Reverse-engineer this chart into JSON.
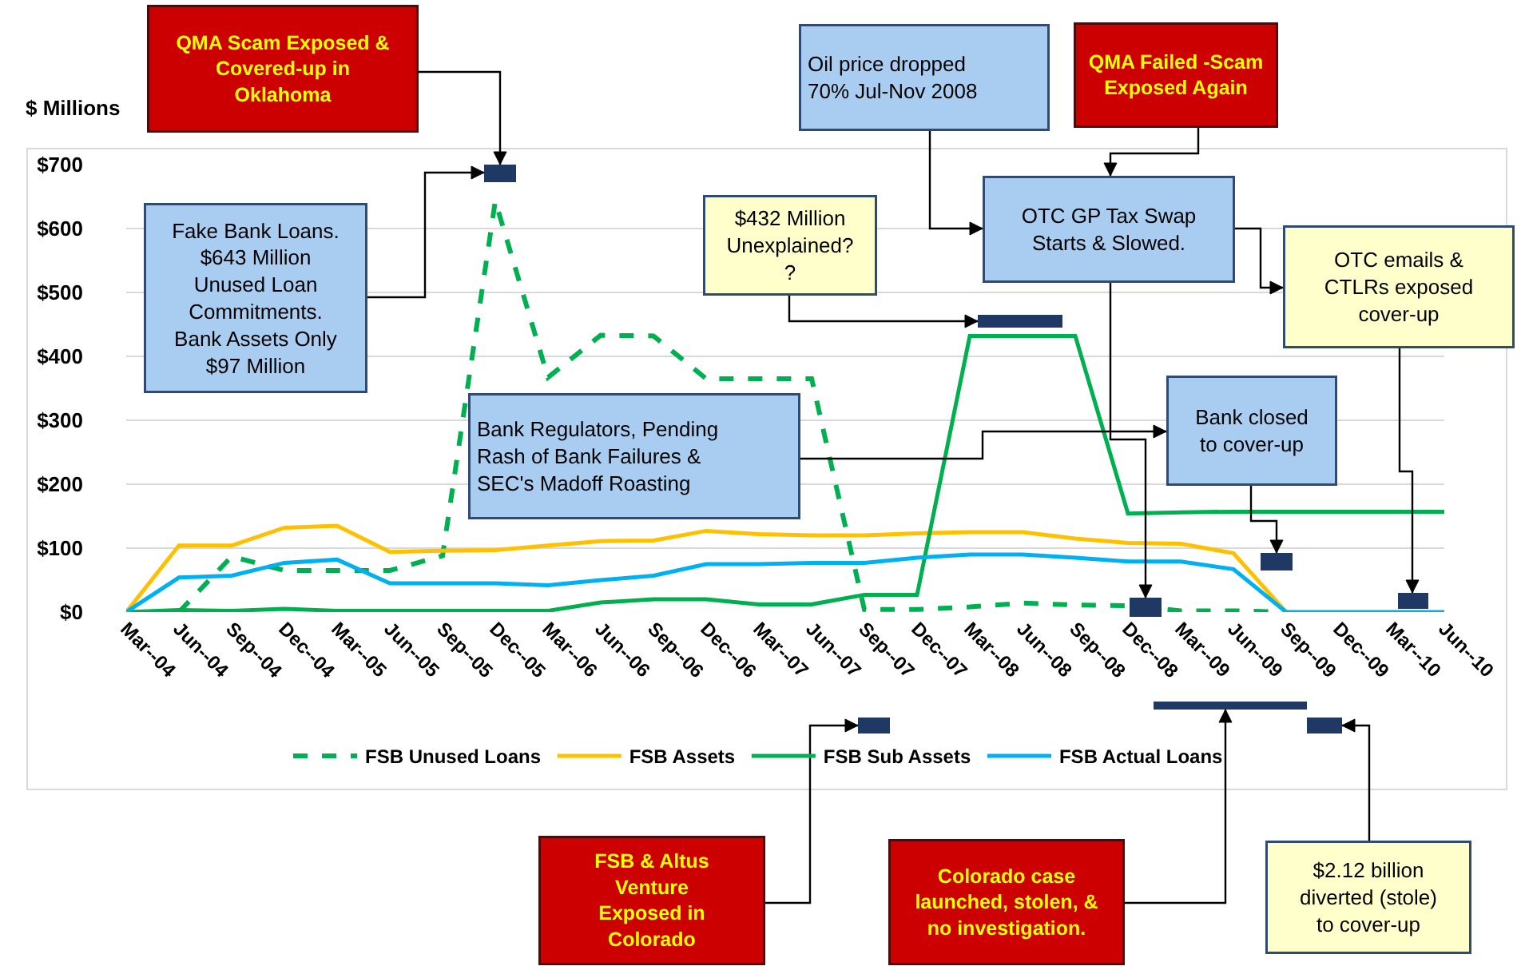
{
  "chart_data": {
    "type": "line",
    "ylabel": "$ Millions",
    "categories": [
      "Mar--04",
      "Jun--04",
      "Sep--04",
      "Dec--04",
      "Mar--05",
      "Jun--05",
      "Sep--05",
      "Dec--05",
      "Mar--06",
      "Jun--06",
      "Sep--06",
      "Dec--06",
      "Mar--07",
      "Jun--07",
      "Sep--07",
      "Dec--07",
      "Mar--08",
      "Jun--08",
      "Sep--08",
      "Dec--08",
      "Mar--09",
      "Jun--09",
      "Sep--09",
      "Dec--09",
      "Mar--10",
      "Jun--10"
    ],
    "series": [
      {
        "name": "FSB Unused Loans",
        "color": "#00b050",
        "line_style": "dashed",
        "values": [
          null,
          0,
          87,
          65,
          65,
          65,
          88,
          643,
          367,
          433,
          432,
          365,
          365,
          365,
          4,
          4,
          8,
          14,
          11,
          10,
          2,
          2,
          0,
          null,
          null,
          null
        ]
      },
      {
        "name": "FSB Assets",
        "color": "#ffc000",
        "values": [
          0,
          104,
          104,
          132,
          135,
          94,
          96,
          97,
          104,
          111,
          112,
          127,
          122,
          120,
          120,
          123,
          125,
          125,
          115,
          108,
          107,
          92,
          0,
          null,
          null,
          null
        ]
      },
      {
        "name": "FSB Sub Assets",
        "color": "#00b050",
        "values": [
          0,
          3,
          2,
          5,
          2,
          2,
          2,
          2,
          2,
          15,
          20,
          20,
          12,
          12,
          27,
          27,
          432,
          432,
          432,
          154,
          156,
          157,
          157,
          157,
          157,
          157
        ]
      },
      {
        "name": "FSB Actual Loans",
        "color": "#00b0f0",
        "values": [
          0,
          54,
          57,
          77,
          82,
          45,
          45,
          45,
          42,
          50,
          57,
          75,
          75,
          77,
          77,
          85,
          90,
          90,
          85,
          79,
          79,
          67,
          0,
          0,
          0,
          0
        ]
      }
    ],
    "ylim": [
      0,
      700
    ],
    "yticks": [
      {
        "value": 0,
        "label": "$0"
      },
      {
        "value": 100,
        "label": "$100"
      },
      {
        "value": 200,
        "label": "$200"
      },
      {
        "value": 300,
        "label": "$300"
      },
      {
        "value": 400,
        "label": "$400"
      },
      {
        "value": 500,
        "label": "$500"
      },
      {
        "value": 600,
        "label": "$600"
      },
      {
        "value": 700,
        "label": "$700"
      }
    ],
    "grid": "y",
    "legend": "bottom",
    "line_style": "solid",
    "annotations": [
      "QMA Scam Exposed &\nCovered-up in\nOklahoma",
      "Fake Bank Loans.\n$643 Million\nUnused Loan\nCommitments.\nBank Assets Only\n$97 Million",
      "$432 Million\nUnexplained?\n?",
      "Oil price dropped\n70% Jul-Nov 2008",
      "QMA Failed -Scam\nExposed Again",
      "OTC GP Tax Swap\nStarts & Slowed.",
      "OTC emails &\nCTLRs exposed\ncover-up",
      "Bank Regulators, Pending\nRash of Bank Failures &\nSEC's Madoff Roasting",
      "Bank closed\nto cover-up",
      "FSB & Altus\nVenture\nExposed in\nColorado",
      "Colorado case\nlaunched, stolen, &\nno investigation.",
      "$2.12 billion\ndiverted (stole)\nto cover-up"
    ]
  }
}
